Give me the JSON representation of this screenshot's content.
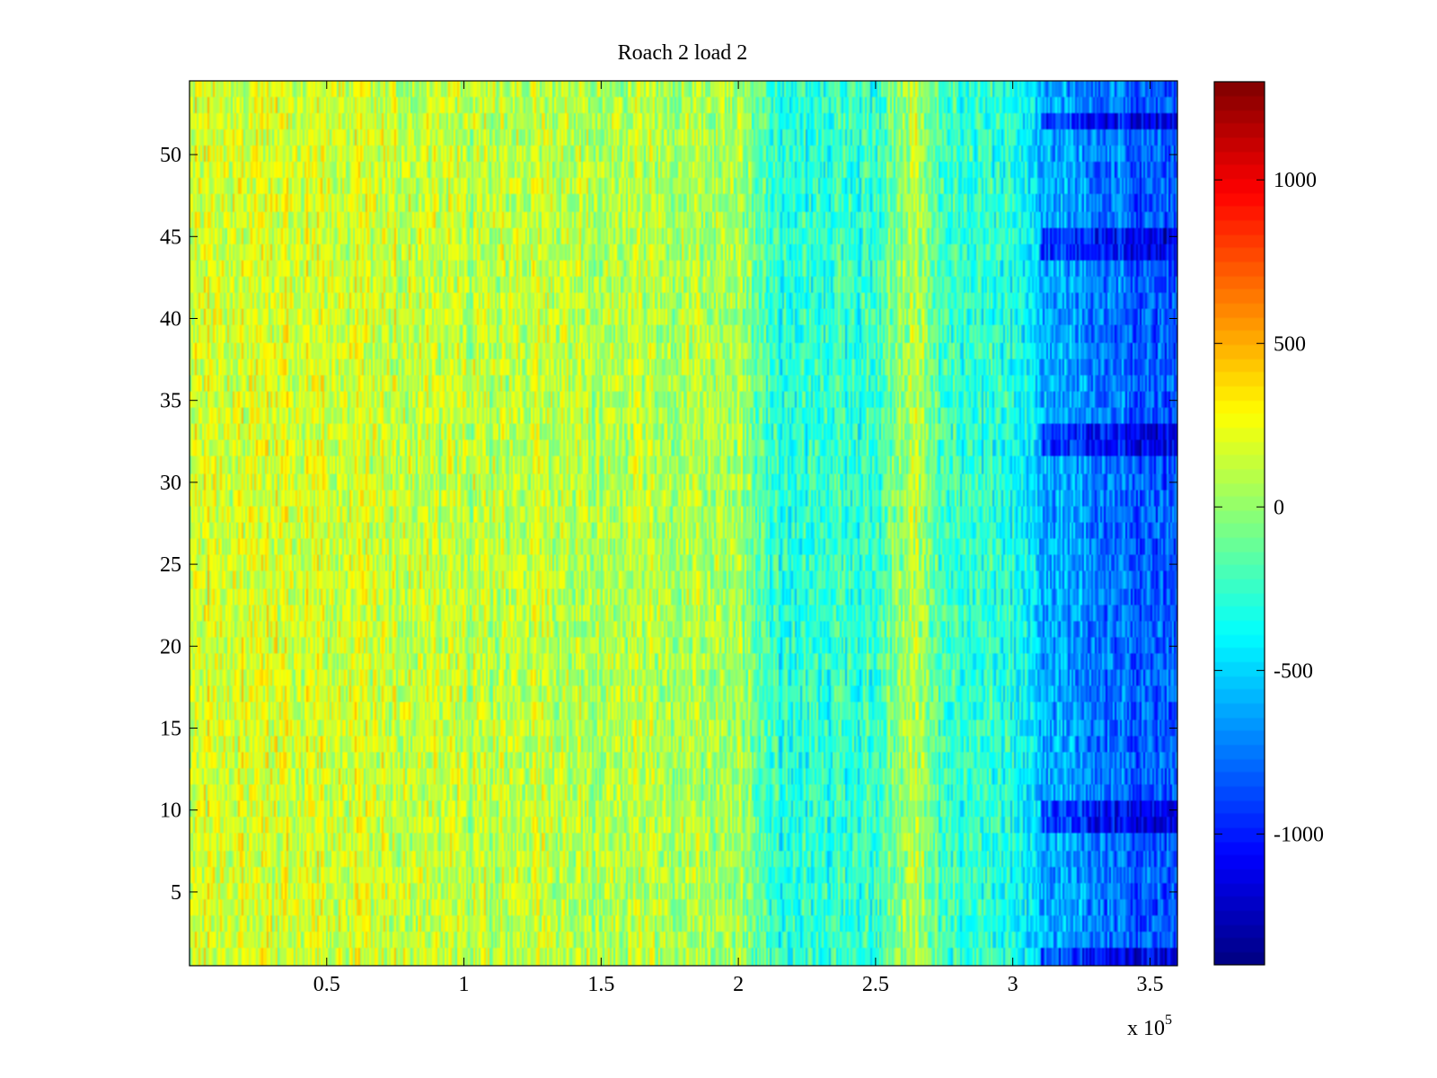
{
  "chart_data": {
    "type": "heatmap",
    "title": "Roach 2 load 2",
    "xlabel": "",
    "ylabel": "",
    "x_range": [
      0,
      360000
    ],
    "y_range": [
      0.5,
      54.5
    ],
    "rows": 54,
    "x_ticks": [
      {
        "value": 50000,
        "label": "0.5"
      },
      {
        "value": 100000,
        "label": "1"
      },
      {
        "value": 150000,
        "label": "1.5"
      },
      {
        "value": 200000,
        "label": "2"
      },
      {
        "value": 250000,
        "label": "2.5"
      },
      {
        "value": 300000,
        "label": "3"
      },
      {
        "value": 350000,
        "label": "3.5"
      }
    ],
    "x_multiplier_label": "x 10",
    "x_multiplier_exponent": "5",
    "y_ticks": [
      {
        "value": 5,
        "label": "5"
      },
      {
        "value": 10,
        "label": "10"
      },
      {
        "value": 15,
        "label": "15"
      },
      {
        "value": 20,
        "label": "20"
      },
      {
        "value": 25,
        "label": "25"
      },
      {
        "value": 30,
        "label": "30"
      },
      {
        "value": 35,
        "label": "35"
      },
      {
        "value": 40,
        "label": "40"
      },
      {
        "value": 45,
        "label": "45"
      },
      {
        "value": 50,
        "label": "50"
      }
    ],
    "colorbar": {
      "colormap": "jet",
      "range": [
        -1400,
        1300
      ],
      "ticks": [
        {
          "value": 1000,
          "label": "1000"
        },
        {
          "value": 500,
          "label": "500"
        },
        {
          "value": 0,
          "label": "0"
        },
        {
          "value": -500,
          "label": "-500"
        },
        {
          "value": -1000,
          "label": "-1000"
        }
      ]
    },
    "value_profile_by_x": [
      {
        "x": 0,
        "mean": 200
      },
      {
        "x": 50000,
        "mean": 180
      },
      {
        "x": 100000,
        "mean": 120
      },
      {
        "x": 150000,
        "mean": 100
      },
      {
        "x": 200000,
        "mean": 60
      },
      {
        "x": 215000,
        "mean": -300
      },
      {
        "x": 250000,
        "mean": -250
      },
      {
        "x": 265000,
        "mean": 120
      },
      {
        "x": 275000,
        "mean": -250
      },
      {
        "x": 300000,
        "mean": -300
      },
      {
        "x": 310000,
        "mean": -550
      },
      {
        "x": 335000,
        "mean": -750
      },
      {
        "x": 360000,
        "mean": -850
      }
    ],
    "deep_blue_rows_right": [
      1,
      9,
      10,
      32,
      33,
      44,
      45,
      52
    ]
  }
}
